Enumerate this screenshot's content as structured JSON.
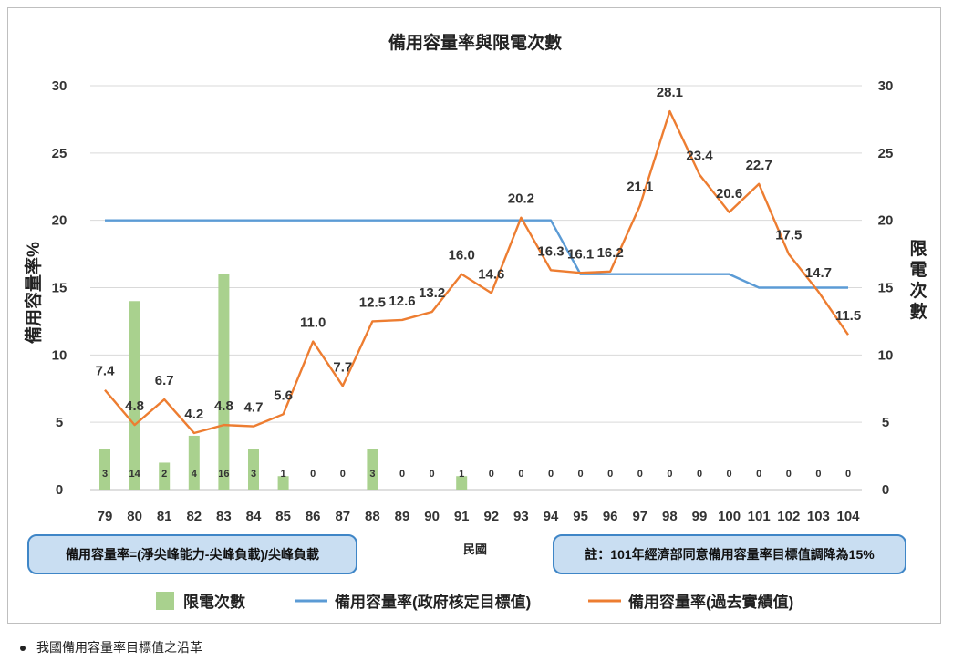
{
  "chart_data": {
    "type": "bar+line",
    "title": "備用容量率與限電次數",
    "xlabel": "民國",
    "ylabel_left": "備用容量率%",
    "ylabel_right": "限電次數",
    "categories": [
      "79",
      "80",
      "81",
      "82",
      "83",
      "84",
      "85",
      "86",
      "87",
      "88",
      "89",
      "90",
      "91",
      "92",
      "93",
      "94",
      "95",
      "96",
      "97",
      "98",
      "99",
      "100",
      "101",
      "102",
      "103",
      "104"
    ],
    "ylim_left": [
      0,
      30
    ],
    "ylim_right": [
      0,
      30
    ],
    "yticks": [
      0,
      5,
      10,
      15,
      20,
      25,
      30
    ],
    "grid": "horizontal",
    "legend_position": "bottom",
    "series": [
      {
        "name": "限電次數",
        "type": "bar",
        "axis": "right",
        "color": "#a9d18e",
        "values": [
          3,
          14,
          2,
          4,
          16,
          3,
          1,
          0,
          0,
          3,
          0,
          0,
          1,
          0,
          0,
          0,
          0,
          0,
          0,
          0,
          0,
          0,
          0,
          0,
          0,
          0
        ]
      },
      {
        "name": "備用容量率(政府核定目標值)",
        "type": "line",
        "axis": "left",
        "color": "#5b9bd5",
        "values": [
          20,
          20,
          20,
          20,
          20,
          20,
          20,
          20,
          20,
          20,
          20,
          20,
          20,
          20,
          20,
          20,
          16,
          16,
          16,
          16,
          16,
          16,
          15,
          15,
          15,
          15
        ]
      },
      {
        "name": "備用容量率(過去實績值)",
        "type": "line",
        "axis": "left",
        "color": "#ed7d31",
        "values": [
          7.4,
          4.8,
          6.7,
          4.2,
          4.8,
          4.7,
          5.6,
          11.0,
          7.7,
          12.5,
          12.6,
          13.2,
          16.0,
          14.6,
          20.2,
          16.3,
          16.1,
          16.2,
          21.1,
          28.1,
          23.4,
          20.6,
          22.7,
          17.5,
          14.7,
          11.5
        ]
      }
    ],
    "line_labels": [
      "7.4",
      "4.8",
      "6.7",
      "4.2",
      "4.8",
      "4.7",
      "5.6",
      "11.0",
      "7.7",
      "12.5",
      "12.6",
      "13.2",
      "16.0",
      "14.6",
      "20.2",
      "16.3",
      "16.1",
      "16.2",
      "21.1",
      "28.1",
      "23.4",
      "20.6",
      "22.7",
      "17.5",
      "14.7",
      "11.5"
    ],
    "annotations": {
      "formula": "備用容量率=(淨尖峰能力-尖峰負載)/尖峰負載",
      "note": "註：101年經濟部同意備用容量率目標值調降為15%"
    }
  },
  "caption": "我國備用容量率目標值之沿革"
}
